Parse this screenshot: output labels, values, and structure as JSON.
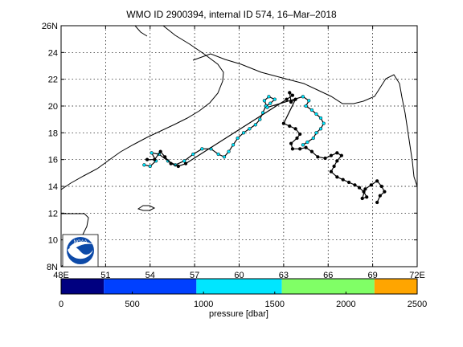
{
  "title": "WMO ID 2900394, internal ID 574, 16–Mar–2018",
  "map": {
    "x_ticks": [
      "48E",
      "51",
      "54",
      "57",
      "60",
      "63",
      "66",
      "69",
      "72E"
    ],
    "y_ticks": [
      "8N",
      "10",
      "12",
      "14",
      "16",
      "18",
      "20",
      "22",
      "24",
      "26N"
    ],
    "logo_text": "NOAA"
  },
  "colorbar": {
    "label": "pressure [dbar]",
    "ticks": [
      "0",
      "500",
      "1000",
      "1500",
      "2000",
      "2500"
    ],
    "colors": [
      "#000080",
      "#0040ff",
      "#00e6ff",
      "#80ff66",
      "#ffa500"
    ]
  },
  "chart_data": {
    "type": "scatter",
    "title": "WMO ID 2900394, internal ID 574, 16–Mar–2018",
    "xlabel": "",
    "ylabel": "",
    "xlim": [
      48,
      72
    ],
    "ylim": [
      8,
      26
    ],
    "x_tick_values": [
      48,
      51,
      54,
      57,
      60,
      63,
      66,
      69,
      72
    ],
    "y_tick_values": [
      8,
      10,
      12,
      14,
      16,
      18,
      20,
      22,
      24,
      26
    ],
    "grid": true,
    "colorbar": {
      "label": "pressure [dbar]",
      "range": [
        0,
        2500
      ],
      "tick_values": [
        0,
        500,
        1000,
        1500,
        2000,
        2500
      ]
    },
    "series": [
      {
        "color": "#00e6ff",
        "points": [
          [
            53.6,
            15.6
          ],
          [
            54.0,
            15.5
          ],
          [
            54.4,
            15.9
          ],
          [
            54.1,
            16.5
          ],
          [
            54.6,
            16.4
          ],
          [
            55.2,
            15.9
          ],
          [
            55.7,
            15.6
          ],
          [
            56.3,
            15.9
          ],
          [
            56.9,
            16.4
          ],
          [
            57.5,
            16.8
          ],
          [
            58.1,
            16.8
          ],
          [
            58.6,
            16.4
          ],
          [
            59.0,
            16.2
          ],
          [
            59.3,
            16.6
          ],
          [
            59.6,
            17.1
          ],
          [
            59.9,
            17.6
          ],
          [
            60.3,
            18.0
          ],
          [
            60.7,
            18.3
          ],
          [
            61.1,
            18.6
          ],
          [
            61.4,
            19.0
          ],
          [
            61.6,
            19.5
          ],
          [
            61.8,
            20.0
          ],
          [
            62.1,
            20.2
          ],
          [
            62.4,
            20.5
          ],
          [
            62.0,
            20.7
          ],
          [
            61.7,
            20.4
          ],
          [
            61.9,
            19.9
          ],
          [
            64.3,
            20.7
          ],
          [
            64.7,
            20.4
          ],
          [
            64.5,
            20.0
          ],
          [
            64.9,
            19.7
          ],
          [
            65.2,
            19.4
          ],
          [
            65.5,
            19.1
          ],
          [
            65.7,
            18.7
          ],
          [
            65.5,
            18.3
          ],
          [
            65.2,
            18.0
          ],
          [
            65.0,
            17.6
          ],
          [
            64.6,
            17.3
          ],
          [
            64.3,
            17.1
          ]
        ]
      },
      {
        "color": "#000000",
        "points": [
          [
            53.8,
            16.0
          ],
          [
            54.3,
            16.0
          ],
          [
            54.7,
            16.6
          ],
          [
            55.0,
            16.2
          ],
          [
            55.4,
            15.7
          ],
          [
            55.9,
            15.5
          ],
          [
            56.4,
            15.7
          ],
          [
            63.2,
            20.5
          ],
          [
            63.6,
            20.8
          ],
          [
            63.4,
            21.0
          ],
          [
            63.5,
            20.3
          ],
          [
            63.8,
            20.5
          ],
          [
            63.0,
            18.7
          ],
          [
            63.4,
            18.5
          ],
          [
            63.8,
            18.3
          ],
          [
            64.1,
            17.9
          ],
          [
            63.9,
            17.6
          ],
          [
            63.5,
            17.2
          ],
          [
            63.6,
            16.8
          ],
          [
            64.1,
            16.8
          ],
          [
            64.5,
            16.9
          ],
          [
            64.9,
            16.6
          ],
          [
            65.3,
            16.2
          ],
          [
            65.8,
            16.1
          ],
          [
            66.2,
            16.3
          ],
          [
            66.6,
            16.5
          ],
          [
            66.9,
            16.3
          ],
          [
            66.6,
            15.9
          ],
          [
            66.4,
            15.5
          ],
          [
            66.2,
            15.1
          ],
          [
            66.6,
            14.7
          ],
          [
            67.0,
            14.5
          ],
          [
            67.4,
            14.3
          ],
          [
            67.8,
            14.1
          ],
          [
            68.1,
            13.9
          ],
          [
            68.4,
            13.6
          ],
          [
            68.6,
            13.2
          ],
          [
            68.3,
            13.1
          ],
          [
            68.5,
            13.8
          ],
          [
            68.9,
            14.1
          ],
          [
            69.3,
            14.4
          ],
          [
            69.6,
            14.0
          ],
          [
            69.8,
            13.6
          ],
          [
            69.5,
            13.3
          ],
          [
            69.3,
            12.8
          ]
        ]
      }
    ]
  }
}
